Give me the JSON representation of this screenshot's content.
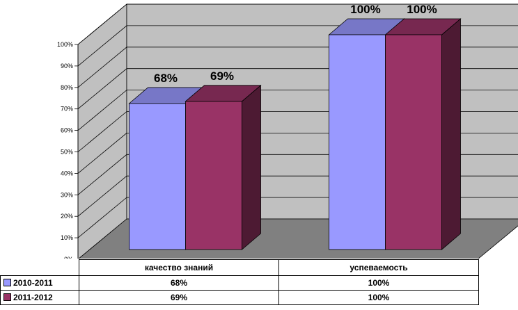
{
  "chart_data": {
    "type": "bar",
    "categories": [
      "качество знаний",
      "успеваемость"
    ],
    "series": [
      {
        "name": "2010-2011",
        "values": [
          68,
          100
        ],
        "color": "#9999ff",
        "labels": [
          "68%",
          "100%"
        ]
      },
      {
        "name": "2011-2012",
        "values": [
          69,
          100
        ],
        "color": "#993366",
        "labels": [
          "69%",
          "100%"
        ]
      }
    ],
    "title": "",
    "xlabel": "",
    "ylabel": "",
    "ylim": [
      0,
      100
    ],
    "y_ticks": [
      "0%",
      "10%",
      "20%",
      "30%",
      "40%",
      "50%",
      "60%",
      "70%",
      "80%",
      "90%",
      "100%"
    ],
    "grid": true,
    "style": "3d-clustered-column",
    "wall_color": "#c0c0c0",
    "floor_color": "#808080",
    "legend": "data-table-below"
  }
}
